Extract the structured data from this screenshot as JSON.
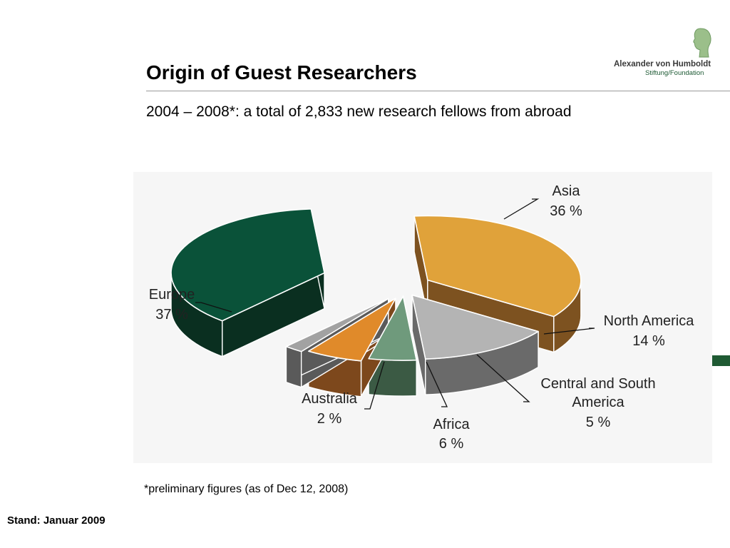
{
  "slide": {
    "title": "Origin of Guest Researchers",
    "subtitle": "2004 – 2008*: a total of 2,833 new research fellows from abroad",
    "footnote": "*preliminary figures (as of Dec 12, 2008)",
    "stand": "Stand: Januar 2009"
  },
  "logo": {
    "name": "Alexander von Humboldt",
    "subtitle": "Stiftung/Foundation",
    "brand_color": "#1f5a33"
  },
  "chart_data": {
    "type": "pie",
    "style": "3d-exploded",
    "categories": [
      "Asia",
      "North America",
      "Central and South America",
      "Africa",
      "Australia",
      "Europe"
    ],
    "values": [
      36,
      14,
      5,
      6,
      2,
      37
    ],
    "value_labels": [
      "36 %",
      "14 %",
      "5 %",
      "6 %",
      "2 %",
      "37 %"
    ],
    "colors": [
      "#e0a23a",
      "#b4b4b4",
      "#6f9a7c",
      "#e08a2a",
      "#a2a2a2",
      "#0a5239"
    ],
    "side_colors": [
      "#7d5220",
      "#6a6a6a",
      "#3b5a44",
      "#7d481c",
      "#5a5a5a",
      "#0a2f20"
    ],
    "legend": "none",
    "data_labels": "outside with leader lines"
  }
}
